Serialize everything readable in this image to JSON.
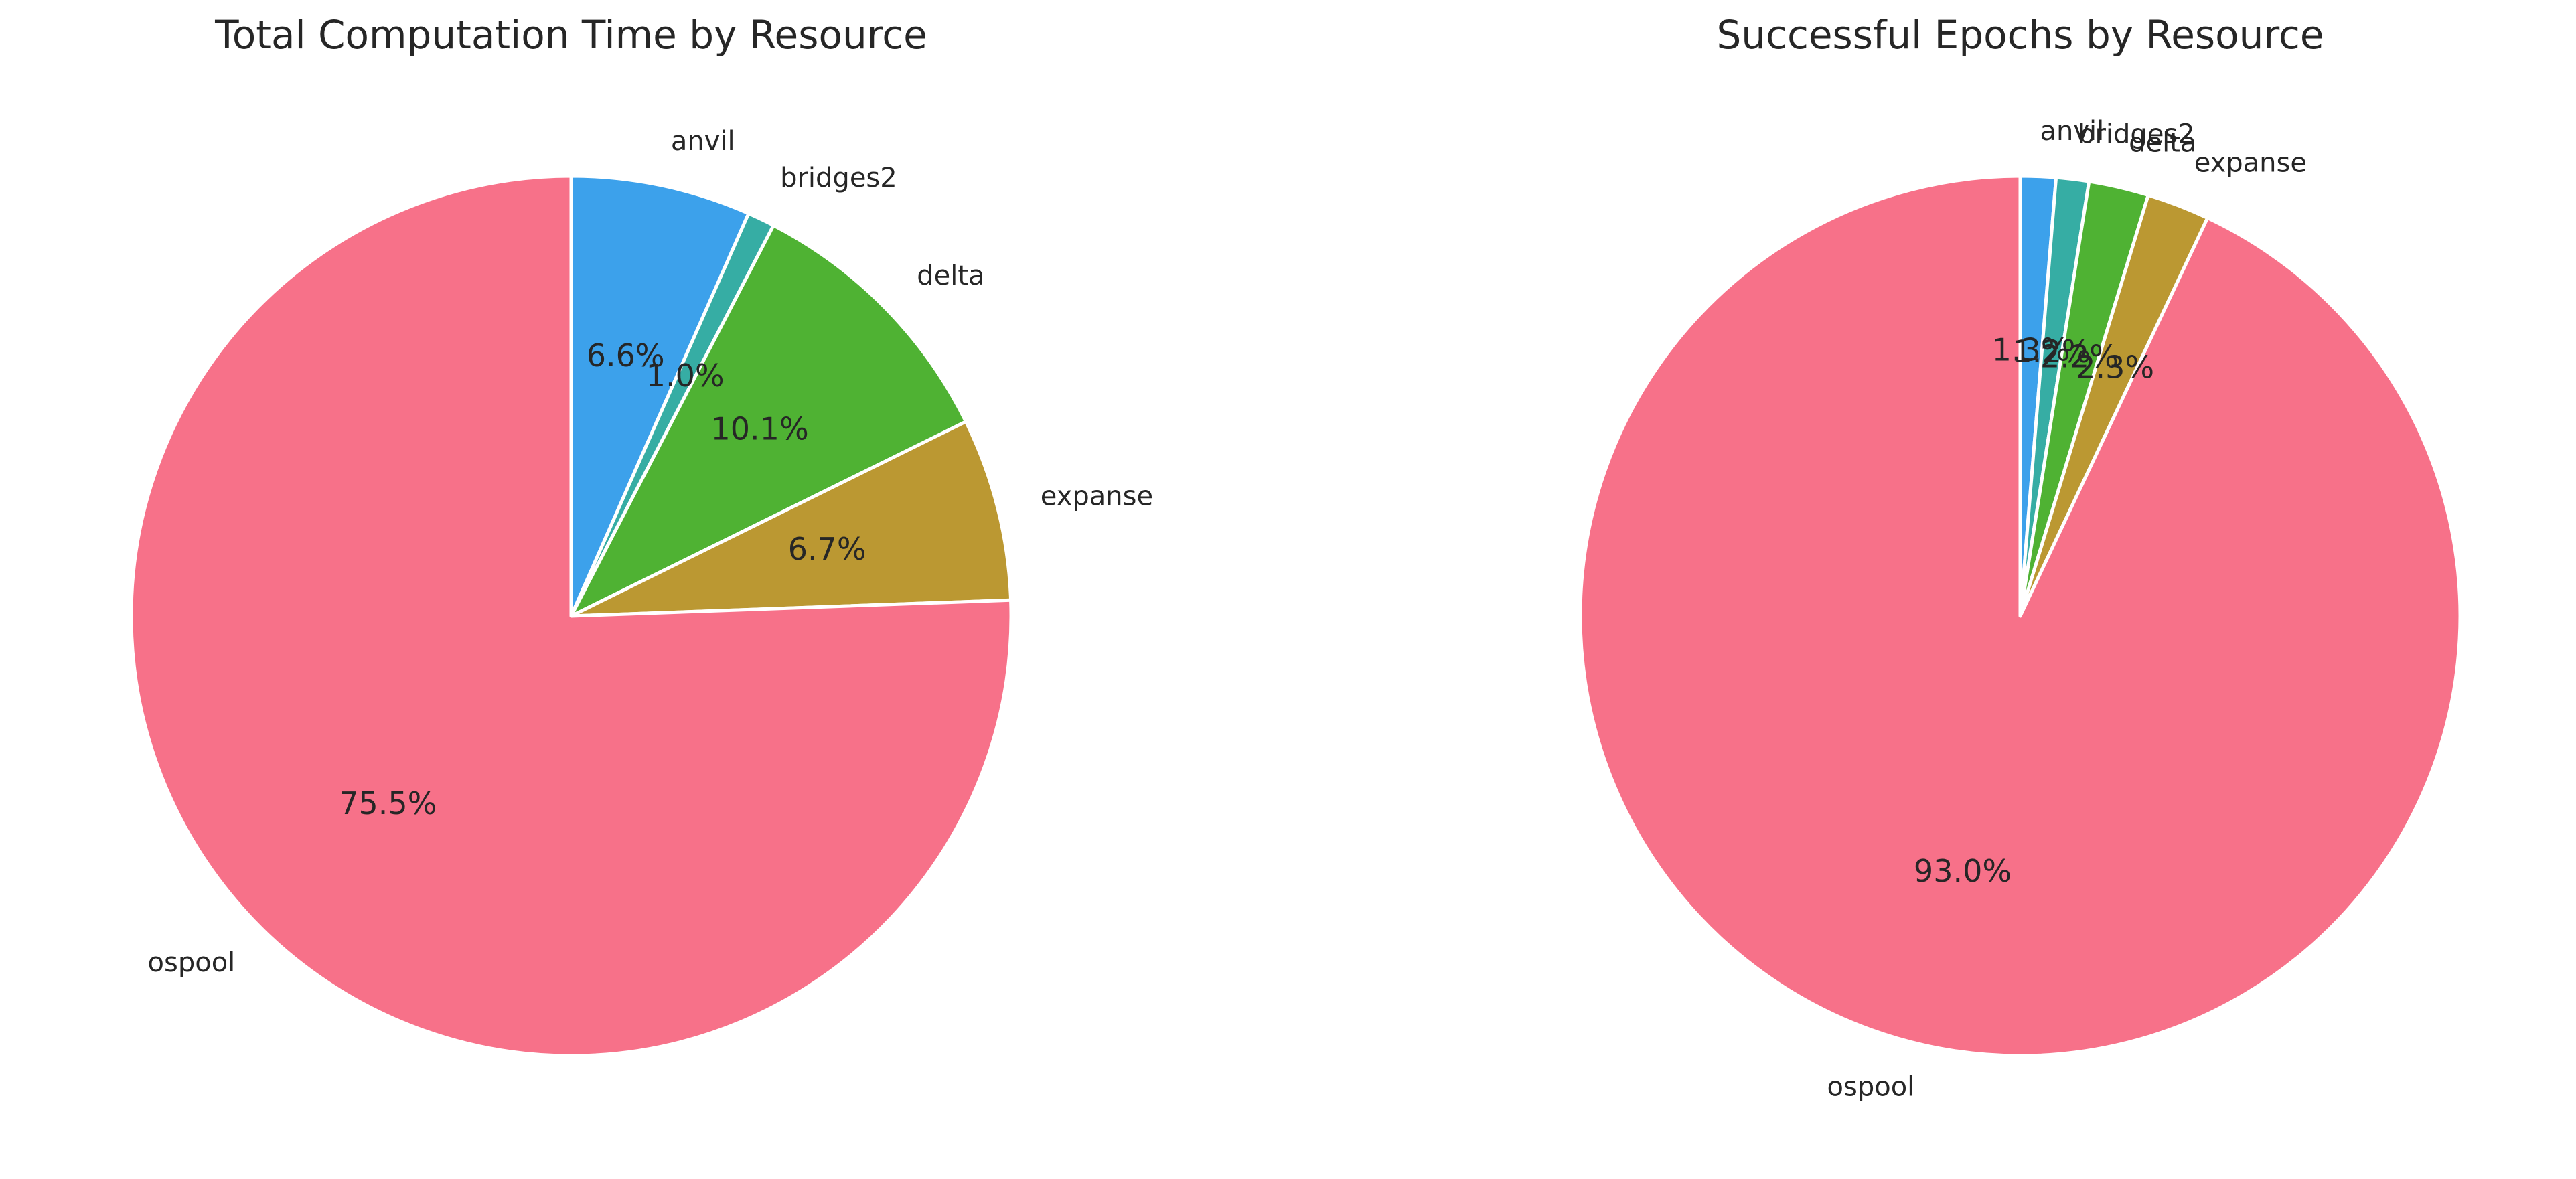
{
  "colors": {
    "anvil": "#3ca1eb",
    "bridges2": "#36ada4",
    "delta": "#4fb233",
    "expanse": "#bb9832",
    "ospool": "#f77189"
  },
  "chart_data": [
    {
      "type": "pie",
      "title": "Total Computation Time by Resource",
      "labels": [
        "anvil",
        "bridges2",
        "delta",
        "expanse",
        "ospool"
      ],
      "values": [
        6.6,
        1.0,
        10.1,
        6.7,
        75.5
      ],
      "pct_labels": [
        "6.6%",
        "1.0%",
        "10.1%",
        "6.7%",
        "75.5%"
      ],
      "start_angle_deg": 90,
      "direction": "clockwise",
      "legend": "none"
    },
    {
      "type": "pie",
      "title": "Successful Epochs by Resource",
      "labels": [
        "anvil",
        "bridges2",
        "delta",
        "expanse",
        "ospool"
      ],
      "values": [
        1.3,
        1.2,
        2.2,
        2.3,
        93.0
      ],
      "pct_labels": [
        "1.3%",
        "1.2%",
        "2.2%",
        "2.3%",
        "93.0%"
      ],
      "start_angle_deg": 90,
      "direction": "clockwise",
      "legend": "none"
    }
  ]
}
